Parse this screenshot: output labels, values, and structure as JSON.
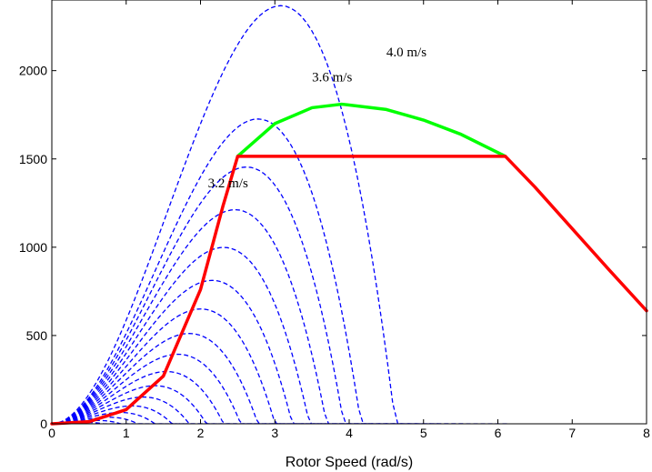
{
  "chart_data": {
    "type": "line",
    "xlabel": "Rotor Speed (rad/s)",
    "ylabel": "",
    "xlim": [
      0,
      8
    ],
    "ylim": [
      0,
      2400
    ],
    "xticks": [
      "0",
      "1",
      "2",
      "3",
      "4",
      "5",
      "6",
      "7",
      "8"
    ],
    "yticks": [
      "0",
      "500",
      "1000",
      "1500",
      "2000"
    ],
    "grid": false,
    "colors": {
      "power_curves": "#0000ff",
      "red_trajectory": "#ff0000",
      "green_trajectory": "#00ff00"
    },
    "power_curve_family": {
      "style": "dashed",
      "power_scale_per_ws3": 37.0,
      "tsr_optimal_rad_per_ws": 0.77,
      "shape": "cubic",
      "wind_speeds": [
        0.6,
        0.8,
        1.0,
        1.2,
        1.4,
        1.6,
        1.8,
        2.0,
        2.2,
        2.4,
        2.6,
        2.8,
        3.0,
        3.2,
        3.4,
        3.6,
        4.0
      ]
    },
    "red_trajectory": {
      "x": [
        0,
        0.5,
        1.0,
        1.5,
        2.0,
        2.3,
        2.5,
        3.0,
        4.0,
        5.0,
        6.1,
        6.5,
        7.0,
        7.5,
        8.0
      ],
      "y": [
        0,
        12,
        80,
        270,
        760,
        1230,
        1515,
        1515,
        1515,
        1515,
        1515,
        1340,
        1105,
        870,
        640
      ]
    },
    "green_trajectory": {
      "x": [
        2.5,
        3.0,
        3.5,
        3.9,
        4.5,
        5.0,
        5.5,
        6.1
      ],
      "y": [
        1515,
        1700,
        1790,
        1810,
        1780,
        1720,
        1640,
        1515
      ]
    },
    "annotations": [
      {
        "text": "4.0 m/s",
        "x": 4.5,
        "y": 2080
      },
      {
        "text": "3.6 m/s",
        "x": 3.5,
        "y": 1940
      },
      {
        "text": "3.2 m/s",
        "x": 2.1,
        "y": 1340
      }
    ]
  }
}
